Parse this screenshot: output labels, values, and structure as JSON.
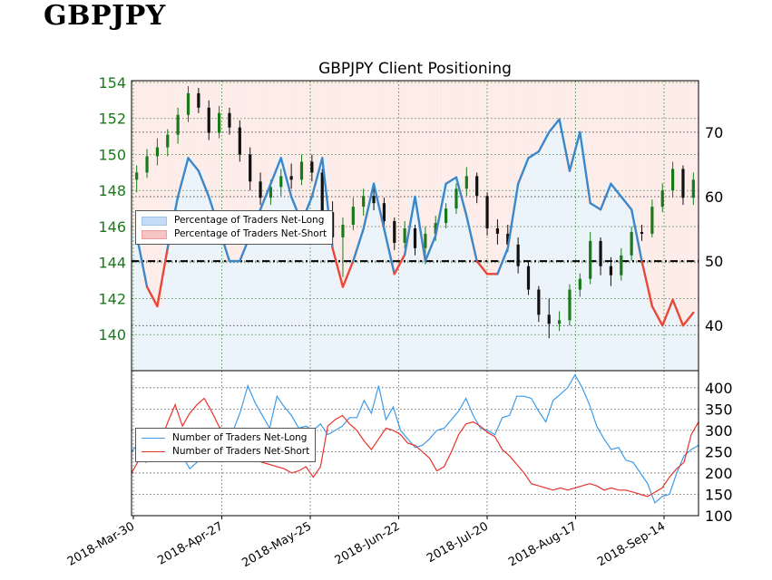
{
  "header": {
    "brand": "GBPJPY"
  },
  "chart_data": [
    {
      "type": "candlestick",
      "title": "GBPJPY Client Positioning",
      "x_tick_labels": [
        "2018-Mar-30",
        "2018-Apr-27",
        "2018-May-25",
        "2018-Jun-22",
        "2018-Jul-20",
        "2018-Aug-17",
        "2018-Sep-14"
      ],
      "y_left_ticks": [
        "154",
        "152",
        "150",
        "148",
        "146",
        "144",
        "142",
        "140"
      ],
      "y_right_ticks": [
        "70",
        "60",
        "50",
        "40"
      ],
      "ylim_price": [
        138,
        154.1
      ],
      "ylim_percent": [
        33,
        78
      ],
      "reference_line_percent": 50,
      "price_series": [
        {
          "o": 148.6,
          "h": 149.4,
          "l": 147.9,
          "c": 149.0
        },
        {
          "o": 149.0,
          "h": 150.3,
          "l": 148.7,
          "c": 149.9
        },
        {
          "o": 149.9,
          "h": 150.9,
          "l": 149.4,
          "c": 150.4
        },
        {
          "o": 150.4,
          "h": 151.4,
          "l": 149.9,
          "c": 151.1
        },
        {
          "o": 151.1,
          "h": 152.6,
          "l": 150.6,
          "c": 152.2
        },
        {
          "o": 152.2,
          "h": 153.8,
          "l": 151.8,
          "c": 153.4
        },
        {
          "o": 153.4,
          "h": 153.7,
          "l": 152.3,
          "c": 152.6
        },
        {
          "o": 152.6,
          "h": 153.0,
          "l": 150.8,
          "c": 151.2
        },
        {
          "o": 151.2,
          "h": 152.7,
          "l": 150.9,
          "c": 152.3
        },
        {
          "o": 152.3,
          "h": 152.6,
          "l": 151.1,
          "c": 151.5
        },
        {
          "o": 151.5,
          "h": 151.9,
          "l": 149.6,
          "c": 150.0
        },
        {
          "o": 150.0,
          "h": 150.4,
          "l": 148.0,
          "c": 148.5
        },
        {
          "o": 148.5,
          "h": 149.0,
          "l": 147.2,
          "c": 147.6
        },
        {
          "o": 147.6,
          "h": 148.6,
          "l": 147.2,
          "c": 148.2
        },
        {
          "o": 148.2,
          "h": 149.2,
          "l": 147.7,
          "c": 148.8
        },
        {
          "o": 148.8,
          "h": 149.5,
          "l": 148.1,
          "c": 148.6
        },
        {
          "o": 148.6,
          "h": 150.0,
          "l": 148.3,
          "c": 149.6
        },
        {
          "o": 149.6,
          "h": 150.0,
          "l": 148.5,
          "c": 149.0
        },
        {
          "o": 149.0,
          "h": 149.2,
          "l": 146.2,
          "c": 146.8
        },
        {
          "o": 146.8,
          "h": 147.4,
          "l": 144.9,
          "c": 145.4
        },
        {
          "o": 145.4,
          "h": 146.5,
          "l": 143.2,
          "c": 146.1
        },
        {
          "o": 146.1,
          "h": 147.6,
          "l": 145.8,
          "c": 147.1
        },
        {
          "o": 147.1,
          "h": 148.1,
          "l": 146.6,
          "c": 147.7
        },
        {
          "o": 147.7,
          "h": 148.2,
          "l": 146.9,
          "c": 147.3
        },
        {
          "o": 147.3,
          "h": 147.6,
          "l": 145.9,
          "c": 146.3
        },
        {
          "o": 146.3,
          "h": 146.5,
          "l": 144.7,
          "c": 145.1
        },
        {
          "o": 145.1,
          "h": 146.3,
          "l": 144.8,
          "c": 145.9
        },
        {
          "o": 145.9,
          "h": 146.1,
          "l": 144.4,
          "c": 144.8
        },
        {
          "o": 144.8,
          "h": 146.0,
          "l": 143.9,
          "c": 145.6
        },
        {
          "o": 145.6,
          "h": 146.6,
          "l": 145.2,
          "c": 146.2
        },
        {
          "o": 146.2,
          "h": 147.3,
          "l": 145.9,
          "c": 147.0
        },
        {
          "o": 147.0,
          "h": 148.4,
          "l": 146.7,
          "c": 148.1
        },
        {
          "o": 148.1,
          "h": 149.3,
          "l": 147.7,
          "c": 148.8
        },
        {
          "o": 148.8,
          "h": 149.0,
          "l": 147.3,
          "c": 147.7
        },
        {
          "o": 147.7,
          "h": 147.9,
          "l": 145.5,
          "c": 145.9
        },
        {
          "o": 145.9,
          "h": 146.4,
          "l": 145.0,
          "c": 145.6
        },
        {
          "o": 145.6,
          "h": 146.1,
          "l": 144.6,
          "c": 145.0
        },
        {
          "o": 145.0,
          "h": 145.4,
          "l": 143.4,
          "c": 143.8
        },
        {
          "o": 143.8,
          "h": 144.1,
          "l": 142.2,
          "c": 142.5
        },
        {
          "o": 142.5,
          "h": 142.7,
          "l": 140.7,
          "c": 141.1
        },
        {
          "o": 141.1,
          "h": 142.0,
          "l": 139.8,
          "c": 140.6
        },
        {
          "o": 140.6,
          "h": 141.3,
          "l": 140.2,
          "c": 140.8
        },
        {
          "o": 140.8,
          "h": 142.8,
          "l": 140.5,
          "c": 142.5
        },
        {
          "o": 142.5,
          "h": 143.4,
          "l": 142.1,
          "c": 143.1
        },
        {
          "o": 143.1,
          "h": 145.7,
          "l": 142.8,
          "c": 145.2
        },
        {
          "o": 145.2,
          "h": 145.4,
          "l": 143.3,
          "c": 143.8
        },
        {
          "o": 143.8,
          "h": 144.3,
          "l": 142.7,
          "c": 143.3
        },
        {
          "o": 143.3,
          "h": 144.8,
          "l": 143.0,
          "c": 144.4
        },
        {
          "o": 144.4,
          "h": 146.0,
          "l": 144.1,
          "c": 145.7
        },
        {
          "o": 145.7,
          "h": 146.1,
          "l": 145.2,
          "c": 145.6
        },
        {
          "o": 145.6,
          "h": 147.5,
          "l": 145.4,
          "c": 147.1
        },
        {
          "o": 147.1,
          "h": 148.4,
          "l": 146.8,
          "c": 148.0
        },
        {
          "o": 148.0,
          "h": 149.6,
          "l": 147.6,
          "c": 149.2
        },
        {
          "o": 149.2,
          "h": 149.4,
          "l": 147.2,
          "c": 147.6
        },
        {
          "o": 147.6,
          "h": 149.0,
          "l": 147.2,
          "c": 148.6
        }
      ],
      "net_long_percent": [
        54,
        46,
        43,
        52,
        60,
        66,
        64,
        60,
        55,
        50,
        50,
        54,
        58,
        62,
        66,
        60,
        56,
        60,
        66,
        52,
        46,
        50,
        55,
        62,
        55,
        48,
        51,
        60,
        50,
        54,
        62,
        63,
        57,
        50,
        48,
        48,
        52,
        62,
        66,
        67,
        70,
        72,
        64,
        70,
        59,
        58,
        62,
        60,
        58,
        50,
        43,
        40,
        44,
        40,
        42
      ]
    },
    {
      "type": "line",
      "y_ticks": [
        "400",
        "350",
        "300",
        "250",
        "200",
        "150",
        "100"
      ],
      "ylim": [
        100,
        440
      ],
      "series": [
        {
          "name": "Number of Traders Net-Long",
          "color": "#3d9be9",
          "values": [
            250,
            270,
            225,
            240,
            255,
            230,
            265,
            240,
            210,
            225,
            240,
            275,
            280,
            290,
            300,
            345,
            405,
            365,
            335,
            305,
            380,
            355,
            335,
            305,
            310,
            300,
            315,
            290,
            300,
            310,
            330,
            330,
            370,
            340,
            405,
            325,
            355,
            300,
            280,
            260,
            265,
            280,
            300,
            305,
            325,
            345,
            375,
            335,
            305,
            300,
            290,
            330,
            335,
            380,
            380,
            375,
            345,
            320,
            370,
            385,
            400,
            430,
            400,
            360,
            310,
            280,
            255,
            260,
            230,
            225,
            200,
            175,
            130,
            145,
            150,
            200,
            240,
            255,
            265
          ]
        },
        {
          "name": "Number of Traders Net-Short",
          "color": "#e8332c",
          "values": [
            200,
            230,
            250,
            245,
            275,
            320,
            360,
            310,
            340,
            360,
            375,
            345,
            310,
            290,
            260,
            250,
            235,
            230,
            225,
            220,
            215,
            210,
            200,
            205,
            215,
            190,
            215,
            310,
            325,
            335,
            315,
            300,
            275,
            255,
            280,
            305,
            300,
            290,
            270,
            265,
            250,
            235,
            205,
            215,
            250,
            290,
            315,
            320,
            310,
            295,
            285,
            255,
            240,
            220,
            200,
            175,
            170,
            165,
            160,
            165,
            160,
            165,
            170,
            175,
            170,
            160,
            165,
            160,
            160,
            155,
            150,
            145,
            155,
            165,
            190,
            210,
            225,
            290,
            320
          ]
        }
      ]
    }
  ],
  "legend_top": {
    "items": [
      {
        "label": "Percentage of Traders Net-Long",
        "color": "#c4dcf6"
      },
      {
        "label": "Percentage of Traders Net-Short",
        "color": "#f6c4c4"
      }
    ]
  }
}
